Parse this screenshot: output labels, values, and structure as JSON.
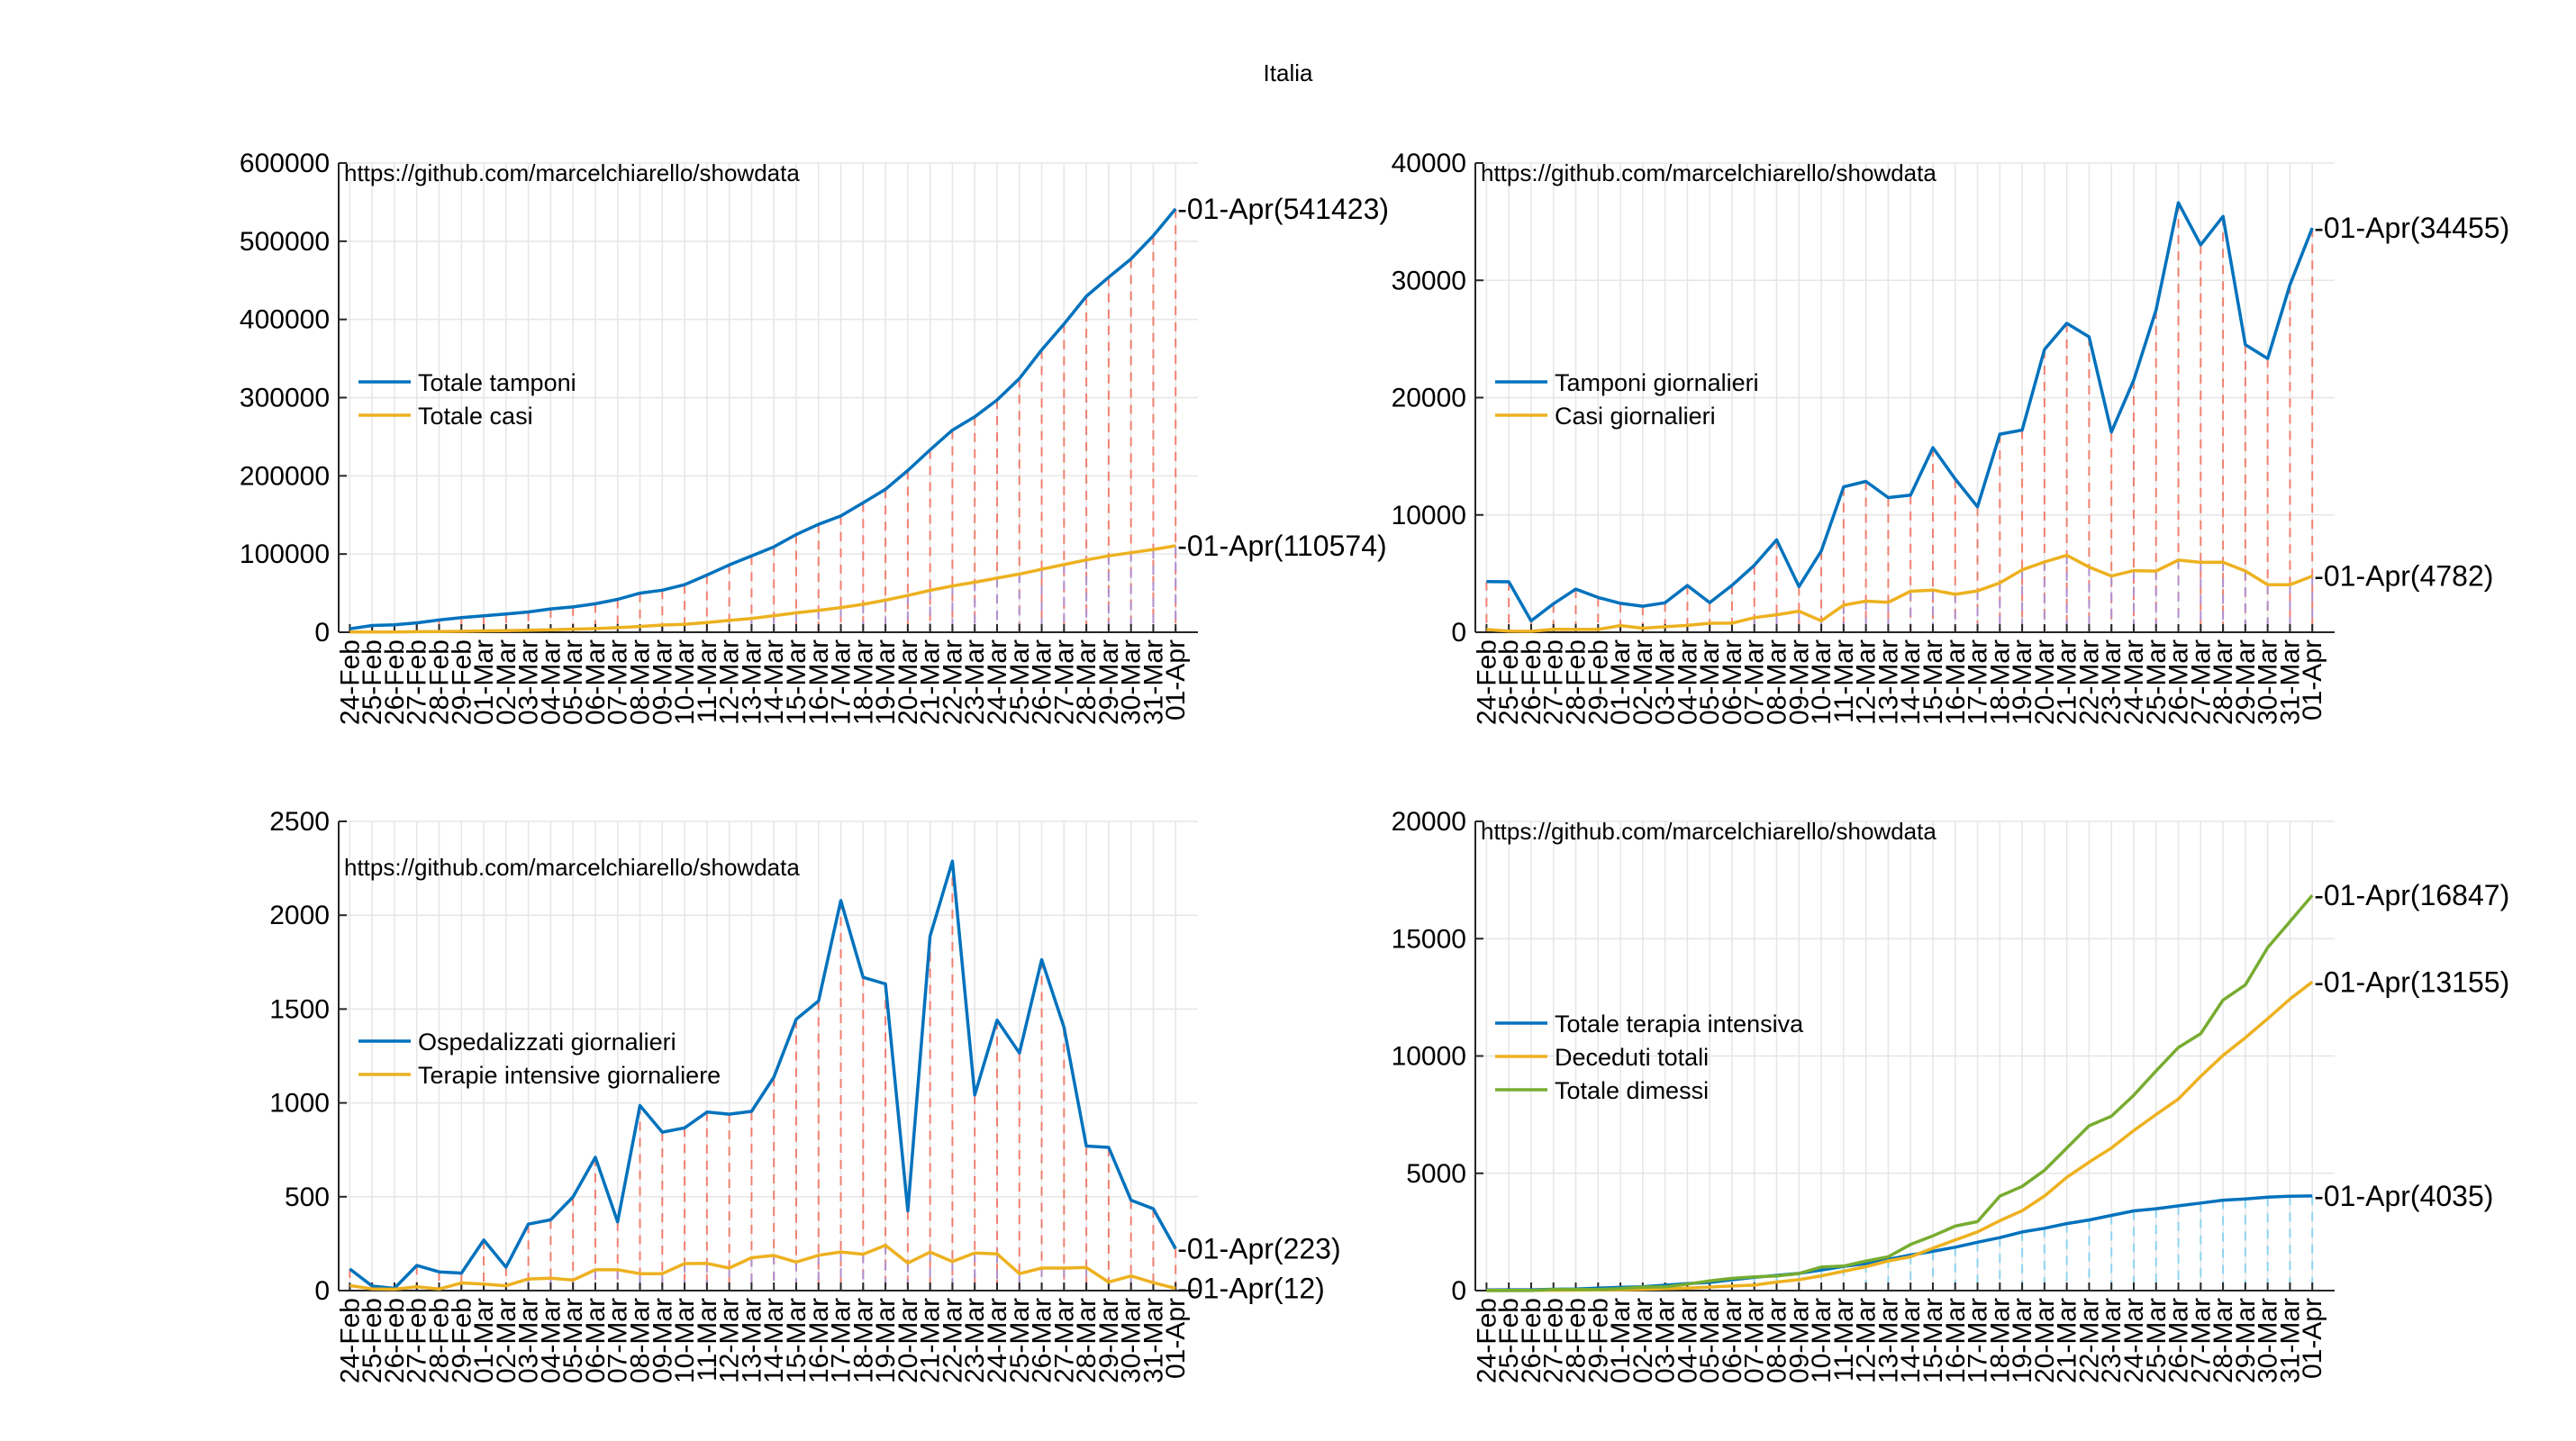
{
  "figure_title": "Italia",
  "source_text": "https://github.com/marcelchiarello/showdata",
  "dates": [
    "24-Feb",
    "25-Feb",
    "26-Feb",
    "27-Feb",
    "28-Feb",
    "29-Feb",
    "01-Mar",
    "02-Mar",
    "03-Mar",
    "04-Mar",
    "05-Mar",
    "06-Mar",
    "07-Mar",
    "08-Mar",
    "09-Mar",
    "10-Mar",
    "11-Mar",
    "12-Mar",
    "13-Mar",
    "14-Mar",
    "15-Mar",
    "16-Mar",
    "17-Mar",
    "18-Mar",
    "19-Mar",
    "20-Mar",
    "21-Mar",
    "22-Mar",
    "23-Mar",
    "24-Mar",
    "25-Mar",
    "26-Mar",
    "27-Mar",
    "28-Mar",
    "29-Mar",
    "30-Mar",
    "31-Mar",
    "01-Apr"
  ],
  "colors": {
    "blue": "#0072BD",
    "orange": "#EDB120",
    "green": "#77AC30",
    "stem_red": "#F08070",
    "stem_purple": "#B090D0",
    "stem_cyan": "#8FD3F0"
  },
  "chart_data": [
    {
      "type": "line",
      "ylim": [
        0,
        600000
      ],
      "yticks": [
        0,
        100000,
        200000,
        300000,
        400000,
        500000,
        600000
      ],
      "legend_position": "middle-left",
      "series": [
        {
          "name": "Totale tamponi",
          "color": "#0072BD",
          "values": [
            4324,
            8623,
            9587,
            12014,
            15695,
            18661,
            21127,
            23345,
            25856,
            29837,
            32362,
            36359,
            42062,
            49937,
            53826,
            60761,
            73154,
            86011,
            97488,
            109170,
            124899,
            137962,
            148657,
            165541,
            182777,
            206886,
            233222,
            258402,
            275468,
            296964,
            324445,
            361060,
            394079,
            429526,
            454030,
            477359,
            506968,
            541423
          ],
          "stems": "#F08070",
          "end_label": "01-Apr(541423)"
        },
        {
          "name": "Totale casi",
          "color": "#EDB120",
          "values": [
            229,
            322,
            400,
            650,
            888,
            1128,
            1694,
            2036,
            2502,
            3089,
            3858,
            4636,
            5883,
            7375,
            9172,
            10149,
            12462,
            15113,
            17660,
            21157,
            24747,
            27980,
            31506,
            35713,
            41035,
            47021,
            53578,
            59138,
            63927,
            69176,
            74386,
            80539,
            86498,
            92472,
            97689,
            101739,
            105792,
            110574
          ],
          "stems": "#B090D0",
          "end_label": "01-Apr(110574)"
        }
      ]
    },
    {
      "type": "line",
      "ylim": [
        0,
        40000
      ],
      "yticks": [
        0,
        10000,
        20000,
        30000,
        40000
      ],
      "legend_position": "middle-left",
      "series": [
        {
          "name": "Tamponi giornalieri",
          "color": "#0072BD",
          "values": [
            4324,
            4299,
            964,
            2427,
            3681,
            2966,
            2466,
            2218,
            2511,
            3981,
            2525,
            3997,
            5703,
            7875,
            3889,
            6935,
            12393,
            12857,
            11477,
            11682,
            15729,
            13063,
            10695,
            16884,
            17236,
            24109,
            26336,
            25180,
            17066,
            21496,
            27481,
            36615,
            33019,
            35447,
            24504,
            23329,
            29609,
            34455
          ],
          "stems": "#F08070",
          "end_label": "01-Apr(34455)"
        },
        {
          "name": "Casi giornalieri",
          "color": "#EDB120",
          "values": [
            229,
            93,
            78,
            250,
            238,
            240,
            566,
            342,
            466,
            587,
            769,
            778,
            1247,
            1492,
            1797,
            977,
            2313,
            2651,
            2547,
            3497,
            3590,
            3233,
            3526,
            4207,
            5322,
            5986,
            6557,
            5560,
            4789,
            5249,
            5210,
            6153,
            5959,
            5974,
            5217,
            4050,
            4053,
            4782
          ],
          "stems": "#B090D0",
          "end_label": "01-Apr(4782)"
        }
      ]
    },
    {
      "type": "line",
      "ylim": [
        0,
        2500
      ],
      "yticks": [
        0,
        500,
        1000,
        1500,
        2000,
        2500
      ],
      "legend_position": "middle-left",
      "series": [
        {
          "name": "Ospedalizzati giornalieri",
          "color": "#0072BD",
          "values": [
            115,
            24,
            12,
            134,
            100,
            93,
            269,
            125,
            354,
            377,
            499,
            710,
            366,
            986,
            844,
            867,
            951,
            940,
            955,
            1137,
            1446,
            1543,
            2078,
            1669,
            1634,
            425,
            1888,
            2288,
            1042,
            1441,
            1266,
            1763,
            1403,
            770,
            763,
            482,
            436,
            223
          ],
          "stems": "#F08070",
          "end_label": "01-Apr(223)"
        },
        {
          "name": "Terapie intensive giornaliere",
          "color": "#EDB120",
          "values": [
            27,
            9,
            7,
            20,
            8,
            41,
            35,
            26,
            62,
            66,
            56,
            111,
            111,
            90,
            90,
            144,
            145,
            120,
            175,
            187,
            152,
            188,
            206,
            194,
            241,
            147,
            205,
            155,
            200,
            196,
            90,
            120,
            120,
            123,
            45,
            78,
            42,
            12
          ],
          "stems": "#B090D0",
          "end_label": "01-Apr(12)"
        }
      ]
    },
    {
      "type": "line",
      "ylim": [
        0,
        20000
      ],
      "yticks": [
        0,
        5000,
        10000,
        15000,
        20000
      ],
      "legend_position": "middle-left",
      "series": [
        {
          "name": "Totale terapia intensiva",
          "color": "#0072BD",
          "values": [
            26,
            35,
            36,
            56,
            64,
            105,
            140,
            166,
            229,
            295,
            351,
            462,
            567,
            650,
            733,
            877,
            1028,
            1153,
            1328,
            1518,
            1672,
            1851,
            2060,
            2257,
            2498,
            2655,
            2857,
            3009,
            3204,
            3396,
            3489,
            3612,
            3732,
            3856,
            3906,
            3981,
            4023,
            4035
          ],
          "stems": "#8FD3F0",
          "end_label": "01-Apr(4035)"
        },
        {
          "name": "Deceduti totali",
          "color": "#EDB120",
          "values": [
            7,
            10,
            12,
            17,
            21,
            29,
            34,
            52,
            79,
            107,
            148,
            197,
            233,
            366,
            463,
            631,
            827,
            1016,
            1266,
            1441,
            1809,
            2158,
            2503,
            2978,
            3405,
            4032,
            4825,
            5476,
            6077,
            6820,
            7503,
            8165,
            9134,
            10023,
            10779,
            11591,
            12428,
            13155
          ],
          "stems": null,
          "end_label": "01-Apr(13155)"
        },
        {
          "name": "Totale dimessi",
          "color": "#77AC30",
          "values": [
            1,
            1,
            3,
            45,
            46,
            50,
            83,
            149,
            160,
            276,
            414,
            523,
            589,
            622,
            724,
            1004,
            1045,
            1258,
            1439,
            1966,
            2335,
            2749,
            2941,
            4025,
            4440,
            5129,
            6072,
            7024,
            7432,
            8326,
            9362,
            10361,
            10950,
            12384,
            13030,
            14620,
            15729,
            16847
          ],
          "stems": null,
          "end_label": "01-Apr(16847)"
        }
      ]
    }
  ]
}
